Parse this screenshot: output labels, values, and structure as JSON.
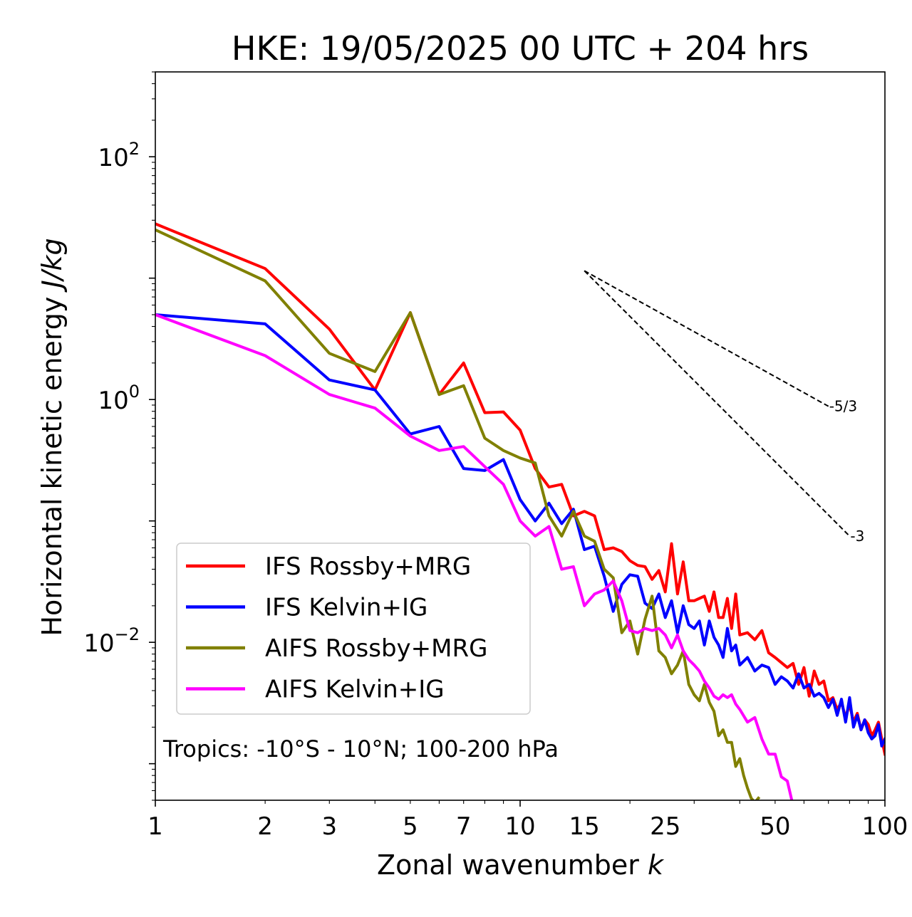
{
  "chart_data": {
    "type": "line",
    "title": "HKE: 19/05/2025 00 UTC + 204 hrs",
    "xlabel": "Zonal wavenumber",
    "xlabel_var": "k",
    "ylabel": "Horizontal kinetic energy",
    "ylabel_unit": "J/kg",
    "x_scale": "log",
    "y_scale": "log",
    "xlim": [
      1,
      100
    ],
    "ylim": [
      0.0005,
      500
    ],
    "x_ticks": [
      {
        "value": 1,
        "label": "1"
      },
      {
        "value": 2,
        "label": "2"
      },
      {
        "value": 3,
        "label": "3"
      },
      {
        "value": 5,
        "label": "5"
      },
      {
        "value": 7,
        "label": "7"
      },
      {
        "value": 10,
        "label": "10"
      },
      {
        "value": 15,
        "label": "15"
      },
      {
        "value": 25,
        "label": "25"
      },
      {
        "value": 50,
        "label": "50"
      },
      {
        "value": 100,
        "label": "100"
      }
    ],
    "y_ticks": [
      {
        "value": 100,
        "base": "10",
        "exp": "2"
      },
      {
        "value": 1,
        "base": "10",
        "exp": "0"
      },
      {
        "value": 0.01,
        "base": "10",
        "exp": "−2"
      }
    ],
    "grid": false,
    "legend_position": "lower-left",
    "annotation": "Tropics: -10°S - 10°N; 100-200 hPa",
    "reference_slopes": [
      {
        "label": "-5/3",
        "x": [
          15,
          70
        ],
        "y": [
          11.5,
          0.88
        ]
      },
      {
        "label": "-3",
        "x": [
          15,
          80
        ],
        "y": [
          11.5,
          0.075
        ]
      }
    ],
    "series": [
      {
        "name": "IFS Rossby+MRG",
        "color": "#ff0000",
        "x": [
          1,
          2,
          3,
          4,
          5,
          6,
          7,
          8,
          9,
          10,
          11,
          12,
          13,
          14,
          15,
          16,
          17,
          18,
          19,
          20,
          21,
          22,
          23,
          24,
          25,
          26,
          27,
          28,
          29,
          30,
          31,
          32,
          33,
          34,
          35,
          36,
          37,
          38,
          39,
          40,
          42,
          44,
          46,
          48,
          50,
          52,
          54,
          56,
          58,
          60,
          62,
          64,
          66,
          68,
          70,
          72,
          74,
          76,
          78,
          80,
          82,
          84,
          86,
          88,
          90,
          92,
          94,
          96,
          98,
          100
        ],
        "y": [
          28,
          12,
          3.8,
          1.2,
          5.2,
          1.1,
          2.0,
          0.78,
          0.79,
          0.56,
          0.27,
          0.19,
          0.2,
          0.11,
          0.12,
          0.11,
          0.058,
          0.06,
          0.056,
          0.047,
          0.043,
          0.042,
          0.033,
          0.039,
          0.026,
          0.065,
          0.025,
          0.046,
          0.022,
          0.022,
          0.023,
          0.024,
          0.018,
          0.026,
          0.016,
          0.016,
          0.023,
          0.013,
          0.025,
          0.0115,
          0.012,
          0.0105,
          0.0125,
          0.0082,
          0.0075,
          0.0068,
          0.0062,
          0.0067,
          0.0045,
          0.0062,
          0.0036,
          0.0058,
          0.0045,
          0.0048,
          0.0033,
          0.0035,
          0.0028,
          0.0032,
          0.0024,
          0.0031,
          0.0022,
          0.0026,
          0.0019,
          0.0023,
          0.0021,
          0.0017,
          0.0019,
          0.0022,
          0.0016,
          0.0012
        ]
      },
      {
        "name": "IFS Kelvin+IG",
        "color": "#0000ff",
        "x": [
          1,
          2,
          3,
          4,
          5,
          6,
          7,
          8,
          9,
          10,
          11,
          12,
          13,
          14,
          15,
          16,
          17,
          18,
          19,
          20,
          21,
          22,
          23,
          24,
          25,
          26,
          27,
          28,
          29,
          30,
          31,
          32,
          33,
          34,
          35,
          36,
          37,
          38,
          39,
          40,
          42,
          44,
          46,
          48,
          50,
          52,
          54,
          56,
          58,
          60,
          62,
          64,
          66,
          68,
          70,
          72,
          74,
          76,
          78,
          80,
          82,
          84,
          86,
          88,
          90,
          92,
          94,
          96,
          98,
          100
        ],
        "y": [
          5.0,
          4.2,
          1.45,
          1.2,
          0.52,
          0.6,
          0.27,
          0.26,
          0.32,
          0.15,
          0.1,
          0.14,
          0.095,
          0.125,
          0.058,
          0.062,
          0.035,
          0.018,
          0.03,
          0.036,
          0.035,
          0.021,
          0.019,
          0.025,
          0.016,
          0.022,
          0.012,
          0.02,
          0.014,
          0.013,
          0.015,
          0.0095,
          0.015,
          0.011,
          0.0095,
          0.0075,
          0.013,
          0.0085,
          0.0095,
          0.0065,
          0.0075,
          0.0058,
          0.0065,
          0.0062,
          0.0045,
          0.0052,
          0.0048,
          0.0042,
          0.0055,
          0.0042,
          0.0045,
          0.0036,
          0.0038,
          0.0035,
          0.0029,
          0.0034,
          0.0025,
          0.0034,
          0.0022,
          0.0035,
          0.002,
          0.0025,
          0.0019,
          0.0023,
          0.0018,
          0.0016,
          0.0017,
          0.0021,
          0.0014,
          0.0016
        ]
      },
      {
        "name": "AIFS Rossby+MRG",
        "color": "#808000",
        "x": [
          1,
          2,
          3,
          4,
          5,
          6,
          7,
          8,
          9,
          10,
          11,
          12,
          13,
          14,
          15,
          16,
          17,
          18,
          19,
          20,
          21,
          22,
          23,
          24,
          25,
          26,
          27,
          28,
          29,
          30,
          31,
          32,
          33,
          34,
          35,
          36,
          37,
          38,
          39,
          40,
          41,
          42,
          43,
          44,
          45
        ],
        "y": [
          25,
          9.5,
          2.4,
          1.7,
          5.2,
          1.1,
          1.3,
          0.48,
          0.38,
          0.33,
          0.3,
          0.11,
          0.075,
          0.12,
          0.075,
          0.068,
          0.04,
          0.034,
          0.012,
          0.015,
          0.008,
          0.0155,
          0.024,
          0.0085,
          0.0075,
          0.0055,
          0.0065,
          0.0085,
          0.0045,
          0.0037,
          0.0033,
          0.0045,
          0.0032,
          0.0027,
          0.0017,
          0.0019,
          0.0015,
          0.0015,
          0.00095,
          0.0011,
          0.0008,
          0.00063,
          0.00052,
          0.00048,
          0.00052
        ]
      },
      {
        "name": "AIFS Kelvin+IG",
        "color": "#ff00ff",
        "x": [
          1,
          2,
          3,
          4,
          5,
          6,
          7,
          8,
          9,
          10,
          11,
          12,
          13,
          14,
          15,
          16,
          17,
          18,
          19,
          20,
          21,
          22,
          23,
          24,
          25,
          26,
          27,
          28,
          29,
          30,
          31,
          32,
          33,
          34,
          35,
          36,
          37,
          38,
          39,
          40,
          42,
          44,
          46,
          48,
          50,
          52,
          54,
          56
        ],
        "y": [
          5.0,
          2.3,
          1.1,
          0.85,
          0.5,
          0.38,
          0.41,
          0.28,
          0.2,
          0.1,
          0.075,
          0.09,
          0.04,
          0.042,
          0.02,
          0.025,
          0.027,
          0.032,
          0.022,
          0.0125,
          0.012,
          0.013,
          0.0125,
          0.013,
          0.0115,
          0.009,
          0.0115,
          0.0085,
          0.0072,
          0.0065,
          0.0058,
          0.0048,
          0.0042,
          0.0036,
          0.0034,
          0.0037,
          0.0035,
          0.0037,
          0.0031,
          0.0028,
          0.0022,
          0.0024,
          0.0016,
          0.0012,
          0.0012,
          0.00078,
          0.00072,
          0.00045
        ]
      }
    ]
  }
}
